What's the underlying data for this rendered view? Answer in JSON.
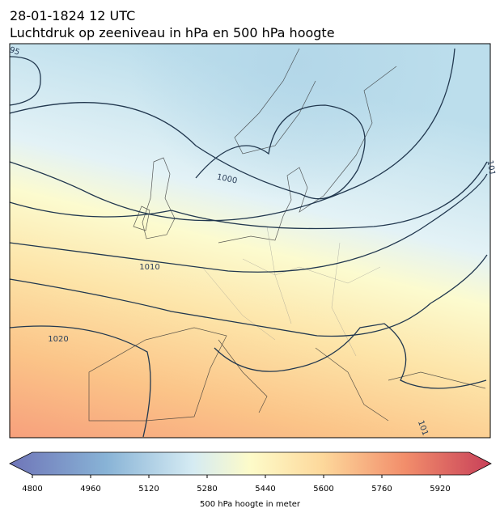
{
  "title_line1": "28-01-1824 12 UTC",
  "title_line2": "Luchtdruk op zeeniveau in hPa en 500 hPa hoogte",
  "map": {
    "contour_labels": [
      "95",
      "1000",
      "1010",
      "1020",
      "101",
      "101"
    ]
  },
  "colorbar": {
    "lim": [
      4800,
      6000
    ],
    "ticks": [
      4800,
      4960,
      5120,
      5280,
      5440,
      5600,
      5760,
      5920
    ],
    "label": "500 hPa hoogte in meter"
  }
}
